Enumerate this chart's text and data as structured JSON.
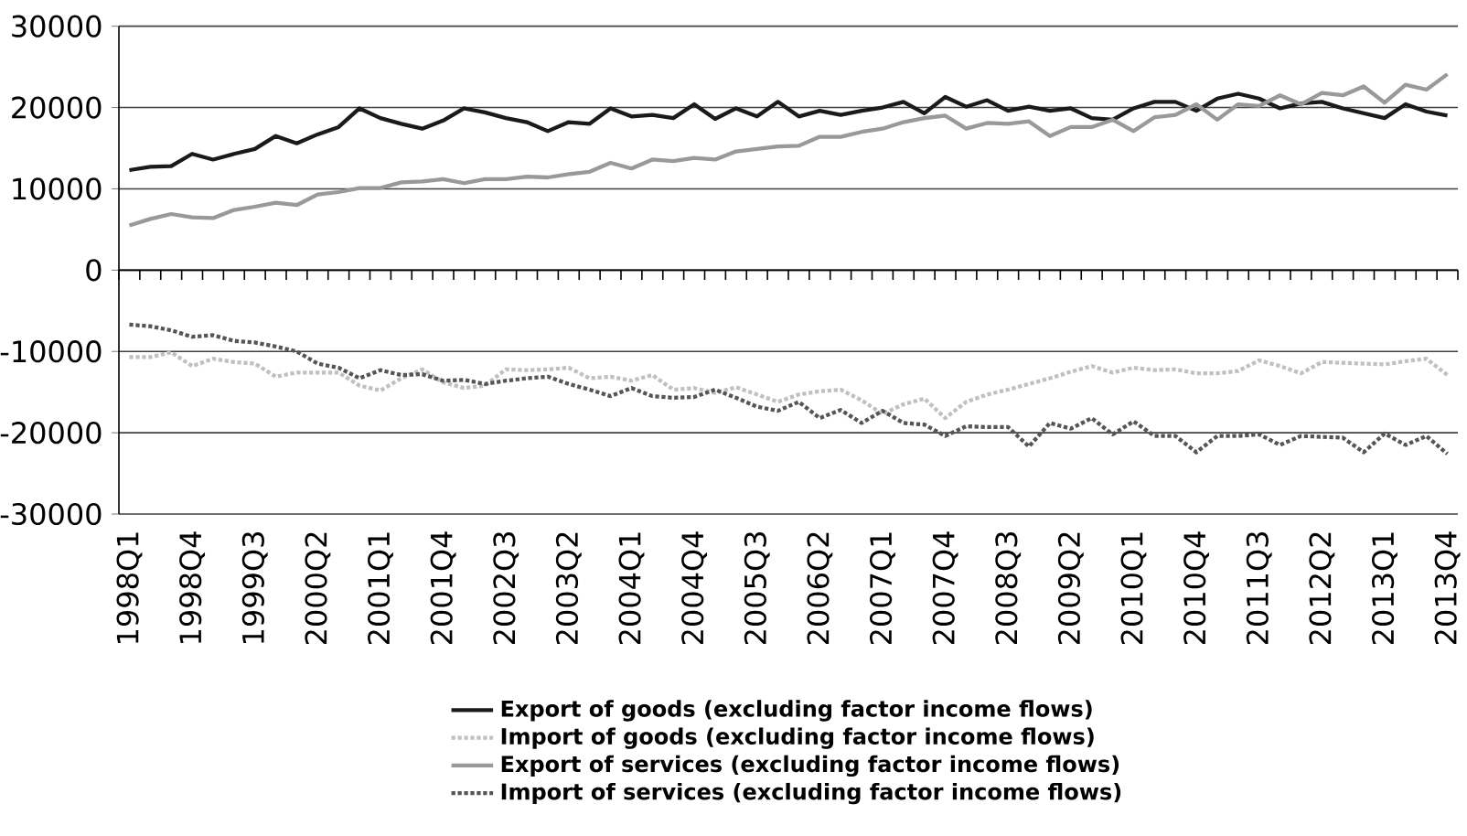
{
  "chart_data": {
    "type": "line",
    "categories": [
      "1998Q1",
      null,
      null,
      "1998Q4",
      null,
      null,
      "1999Q3",
      null,
      null,
      "2000Q2",
      null,
      null,
      "2001Q1",
      null,
      null,
      "2001Q4",
      null,
      null,
      "2002Q3",
      null,
      null,
      "2003Q2",
      null,
      null,
      "2004Q1",
      null,
      null,
      "2004Q4",
      null,
      null,
      "2005Q3",
      null,
      null,
      "2006Q2",
      null,
      null,
      "2007Q1",
      null,
      null,
      "2007Q4",
      null,
      null,
      "2008Q3",
      null,
      null,
      "2009Q2",
      null,
      null,
      "2010Q1",
      null,
      null,
      "2010Q4",
      null,
      null,
      "2011Q3",
      null,
      null,
      "2012Q2",
      null,
      null,
      "2013Q1",
      null,
      null,
      "2013Q4"
    ],
    "series": [
      {
        "name": "Export of goods (excluding factor income flows)",
        "color": "#1a1a1a",
        "line_style": "solid",
        "values": [
          12300,
          12700,
          12800,
          14300,
          13600,
          14300,
          14900,
          16500,
          15600,
          16700,
          17600,
          19900,
          18700,
          18000,
          17400,
          18400,
          19900,
          19400,
          18700,
          18200,
          17100,
          18200,
          18000,
          19900,
          18900,
          19100,
          18700,
          20400,
          18600,
          19900,
          18900,
          20700,
          18900,
          19600,
          19100,
          19600,
          20000,
          20700,
          19300,
          21300,
          20100,
          20900,
          19600,
          20100,
          19600,
          19900,
          18700,
          18500,
          19900,
          20700,
          20700,
          19600,
          21100,
          21700,
          21100,
          19900,
          20500,
          20700,
          19900,
          19300,
          18700,
          20400,
          19500,
          19000
        ]
      },
      {
        "name": "Import of goods (excluding factor income flows)",
        "color": "#c0c0c0",
        "line_style": "dotted",
        "values": [
          -10700,
          -10700,
          -10100,
          -11800,
          -10900,
          -11300,
          -11500,
          -13100,
          -12600,
          -12600,
          -12600,
          -14200,
          -14800,
          -13300,
          -12200,
          -13800,
          -14500,
          -14200,
          -12200,
          -12300,
          -12200,
          -12000,
          -13300,
          -13100,
          -13600,
          -12900,
          -14700,
          -14500,
          -15100,
          -14400,
          -15300,
          -16200,
          -15300,
          -14900,
          -14700,
          -16000,
          -17700,
          -16500,
          -15800,
          -18200,
          -16200,
          -15300,
          -14700,
          -14000,
          -13300,
          -12500,
          -11800,
          -12600,
          -12000,
          -12300,
          -12200,
          -12700,
          -12700,
          -12400,
          -11100,
          -11800,
          -12700,
          -11300,
          -11400,
          -11500,
          -11600,
          -11200,
          -10900,
          -12900
        ]
      },
      {
        "name": "Export of services (excluding factor income flows)",
        "color": "#999999",
        "line_style": "solid",
        "values": [
          5500,
          6300,
          6900,
          6500,
          6400,
          7400,
          7800,
          8300,
          8000,
          9300,
          9600,
          10100,
          10100,
          10800,
          10900,
          11200,
          10700,
          11200,
          11200,
          11500,
          11400,
          11800,
          12100,
          13200,
          12500,
          13600,
          13400,
          13800,
          13600,
          14600,
          14900,
          15200,
          15300,
          16400,
          16400,
          17000,
          17400,
          18200,
          18700,
          19000,
          17400,
          18100,
          18000,
          18300,
          16500,
          17600,
          17600,
          18500,
          17100,
          18800,
          19100,
          20400,
          18500,
          20400,
          20200,
          21500,
          20400,
          21800,
          21500,
          22600,
          20600,
          22800,
          22200,
          24100
        ]
      },
      {
        "name": "Import of services (excluding factor income flows)",
        "color": "#555555",
        "line_style": "dotted",
        "values": [
          -6700,
          -6900,
          -7400,
          -8200,
          -8000,
          -8700,
          -8900,
          -9400,
          -10000,
          -11500,
          -12000,
          -13300,
          -12300,
          -12900,
          -12800,
          -13600,
          -13500,
          -14000,
          -13600,
          -13300,
          -13100,
          -14000,
          -14700,
          -15500,
          -14500,
          -15500,
          -15700,
          -15600,
          -14700,
          -15700,
          -16800,
          -17300,
          -16200,
          -18200,
          -17200,
          -18800,
          -17300,
          -18800,
          -19000,
          -20400,
          -19200,
          -19300,
          -19300,
          -21700,
          -18800,
          -19500,
          -18200,
          -20200,
          -18600,
          -20400,
          -20400,
          -22400,
          -20400,
          -20400,
          -20200,
          -21500,
          -20400,
          -20500,
          -20600,
          -22400,
          -20100,
          -21500,
          -20400,
          -22600
        ]
      }
    ],
    "ylim": [
      -30000,
      30000
    ],
    "yticks": [
      -30000,
      -20000,
      -10000,
      0,
      10000,
      20000,
      30000
    ],
    "grid": "y",
    "legend": "bottom",
    "marker": "none"
  }
}
